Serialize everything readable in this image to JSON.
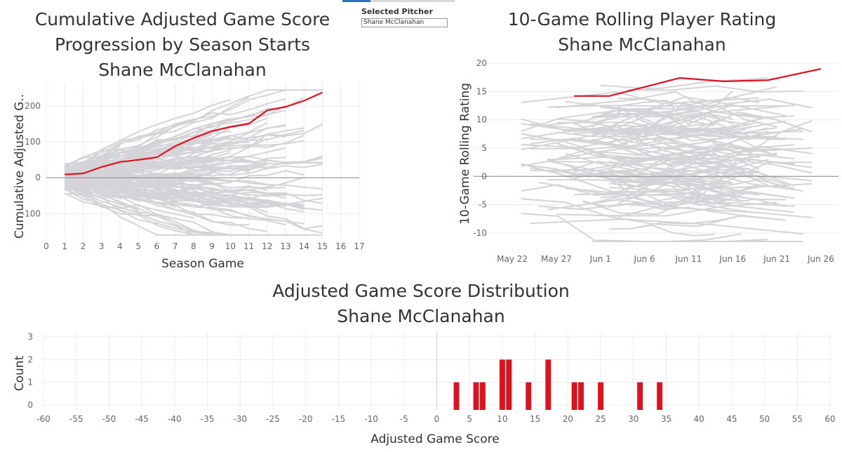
{
  "filter": {
    "label": "Selected Pitcher",
    "value": "Shane McClanahan"
  },
  "colors": {
    "highlight": "#e0111f",
    "background_lines": "#d4d4d8",
    "zero_line": "#8a8a8a",
    "grid": "#ececec"
  },
  "chart_data": [
    {
      "type": "line",
      "title": [
        "Cumulative Adjusted Game Score",
        "Progression by Season Starts",
        "Shane McClanahan"
      ],
      "xlabel": "Season Game",
      "ylabel": "Cumulative Adjusted G..",
      "xlim": [
        0,
        17
      ],
      "ylim": [
        -170,
        265
      ],
      "x_ticks": [
        0,
        1,
        2,
        3,
        4,
        5,
        6,
        7,
        8,
        9,
        10,
        11,
        12,
        13,
        14,
        15,
        16,
        17
      ],
      "y_ticks": [
        -100,
        0,
        100,
        200
      ],
      "zero_line": true,
      "series": [
        {
          "highlight": true,
          "x": [
            1,
            2,
            3,
            4,
            5,
            6,
            7,
            8,
            9,
            10,
            11,
            12,
            13,
            14,
            15
          ],
          "y": [
            9,
            12,
            30,
            44,
            50,
            57,
            88,
            111,
            130,
            142,
            151,
            188,
            198,
            215,
            238
          ]
        }
      ],
      "background_series_count": 150,
      "background_note_color": "light gray"
    },
    {
      "type": "line",
      "title": [
        "10-Game Rolling Player Rating",
        "Shane McClanahan"
      ],
      "xlabel": "",
      "ylabel": "10-Game Rolling Rating",
      "xlim": [
        "May 20",
        "Jun 28"
      ],
      "ylim": [
        -12,
        21
      ],
      "x_ticks": [
        "May 22",
        "May 27",
        "Jun 1",
        "Jun 6",
        "Jun 11",
        "Jun 16",
        "Jun 21",
        "Jun 26"
      ],
      "y_ticks": [
        -10,
        -5,
        0,
        5,
        10,
        15,
        20
      ],
      "zero_line": true,
      "series": [
        {
          "highlight": true,
          "x": [
            "May 29",
            "Jun 2",
            "Jun 5",
            "Jun 10",
            "Jun 15",
            "Jun 20",
            "Jun 26"
          ],
          "y": [
            14.2,
            14.2,
            15.4,
            17.4,
            16.8,
            17.0,
            19.0
          ]
        }
      ],
      "background_series_count": 110
    },
    {
      "type": "bar",
      "title": [
        "Adjusted Game Score Distribution",
        "Shane McClanahan"
      ],
      "xlabel": "Adjusted Game Score",
      "ylabel": "Count",
      "xlim": [
        -60,
        60
      ],
      "ylim": [
        0,
        3
      ],
      "x_ticks": [
        -60,
        -55,
        -50,
        -45,
        -40,
        -35,
        -30,
        -25,
        -20,
        -15,
        -10,
        -5,
        0,
        5,
        10,
        15,
        20,
        25,
        30,
        35,
        40,
        45,
        50,
        55,
        60
      ],
      "y_ticks": [
        0,
        1,
        2,
        3
      ],
      "bins": [
        3,
        6,
        7,
        10,
        11,
        14,
        17,
        21,
        22,
        25,
        31,
        34
      ],
      "counts": [
        1,
        1,
        1,
        2,
        2,
        1,
        2,
        1,
        1,
        1,
        1,
        1
      ],
      "bin_width": 1
    }
  ]
}
